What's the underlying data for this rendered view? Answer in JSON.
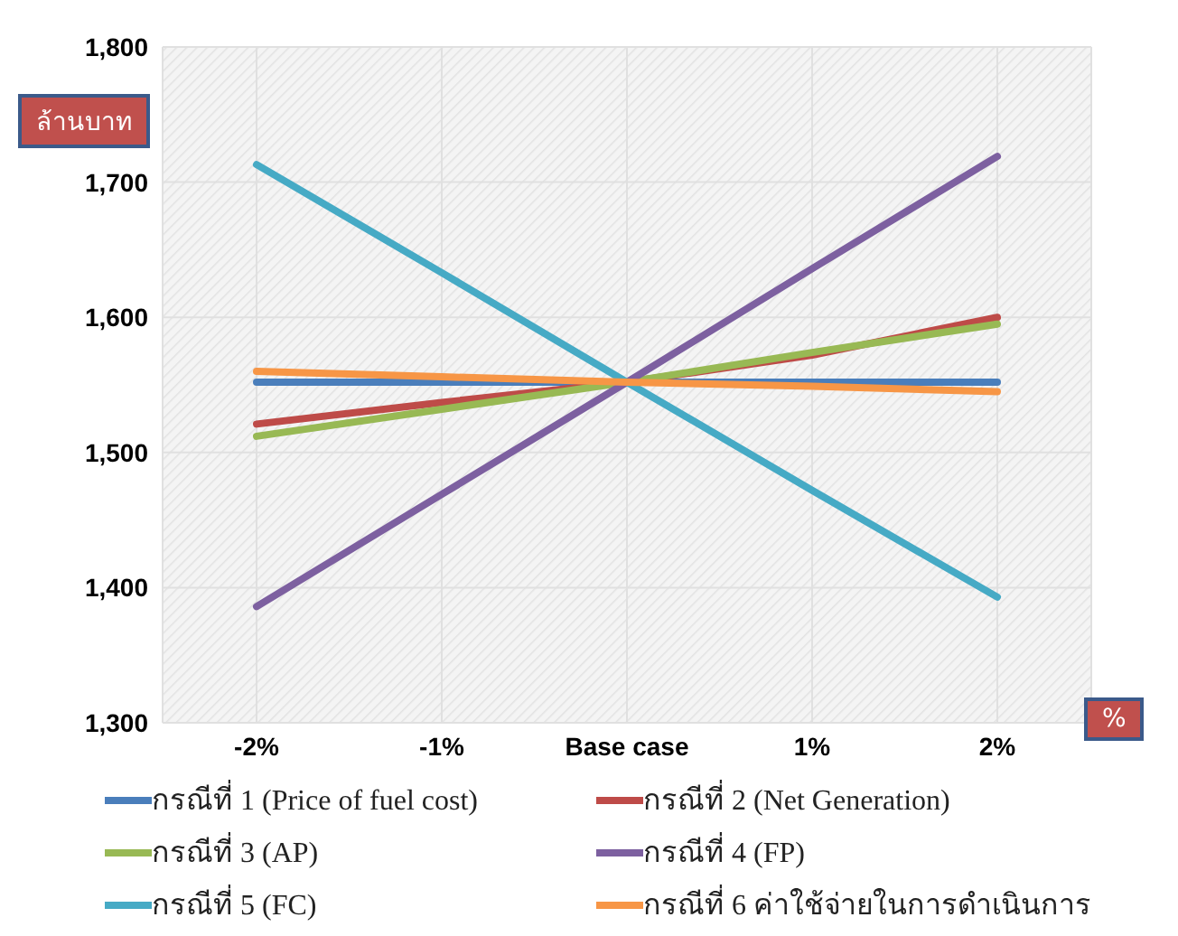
{
  "chart_data": {
    "type": "line",
    "ylabel": "ล้านบาท",
    "xlabel": "%",
    "categories": [
      "-2%",
      "-1%",
      "Base case",
      "1%",
      "2%"
    ],
    "series": [
      {
        "name": "กรณีที่ 1 (Price of fuel cost)",
        "color": "#4a7ebb",
        "values": [
          1552,
          1552,
          1552,
          1552,
          1552
        ]
      },
      {
        "name": "กรณีที่ 2 (Net Generation)",
        "color": "#be4b48",
        "values": [
          1521,
          1537,
          1552,
          1572,
          1600
        ]
      },
      {
        "name": "กรณีที่ 3 (AP)",
        "color": "#98b954",
        "values": [
          1512,
          1532,
          1552,
          1574,
          1595
        ]
      },
      {
        "name": "กรณีที่ 4 (FP)",
        "color": "#7d60a0",
        "values": [
          1386,
          1469,
          1552,
          1636,
          1719
        ]
      },
      {
        "name": "กรณีที่ 5 (FC)",
        "color": "#46aac5",
        "values": [
          1713,
          1633,
          1552,
          1472,
          1393
        ]
      },
      {
        "name": "กรณีที่ 6 ค่าใช้จ่ายในการดำเนินการ",
        "color": "#f79646",
        "values": [
          1560,
          1556,
          1552,
          1549,
          1545
        ]
      }
    ],
    "ylim": [
      1300,
      1800
    ],
    "yticks": [
      {
        "value": 1300,
        "label": "1,300"
      },
      {
        "value": 1400,
        "label": "1,400"
      },
      {
        "value": 1500,
        "label": "1,500"
      },
      {
        "value": 1600,
        "label": "1,600"
      },
      {
        "value": 1700,
        "label": "1,700"
      },
      {
        "value": 1800,
        "label": "1,800"
      }
    ],
    "grid": true,
    "legend": "bottom",
    "marker": "none",
    "line_style": "solid"
  }
}
